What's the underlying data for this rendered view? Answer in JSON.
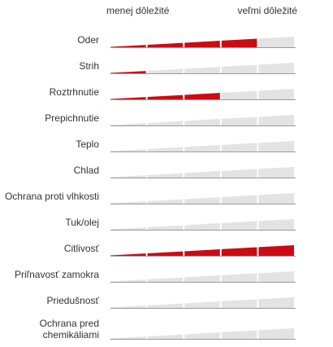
{
  "scale": {
    "low_label": "menej dôležité",
    "high_label": "veľmi dôležité"
  },
  "colors": {
    "fill": "#cc0a14",
    "track": "#e3e3e3",
    "baseline": "#9a9a9a"
  },
  "segments_total": 5,
  "rows": [
    {
      "label": "Oder",
      "level": 4
    },
    {
      "label": "Strih",
      "level": 1
    },
    {
      "label": "Roztrhnutie",
      "level": 3
    },
    {
      "label": "Prepichnutie",
      "level": 0
    },
    {
      "label": "Teplo",
      "level": 0
    },
    {
      "label": "Chlad",
      "level": 0
    },
    {
      "label": "Ochrana proti vlhkosti",
      "level": 0
    },
    {
      "label": "Tuk/olej",
      "level": 0
    },
    {
      "label": "Citlivosť",
      "level": 5
    },
    {
      "label": "Priľnavosť zamokra",
      "level": 0
    },
    {
      "label": "Priedušnosť",
      "level": 0
    },
    {
      "label": "Ochrana pred\nchemikáliami",
      "level": 0
    }
  ]
}
